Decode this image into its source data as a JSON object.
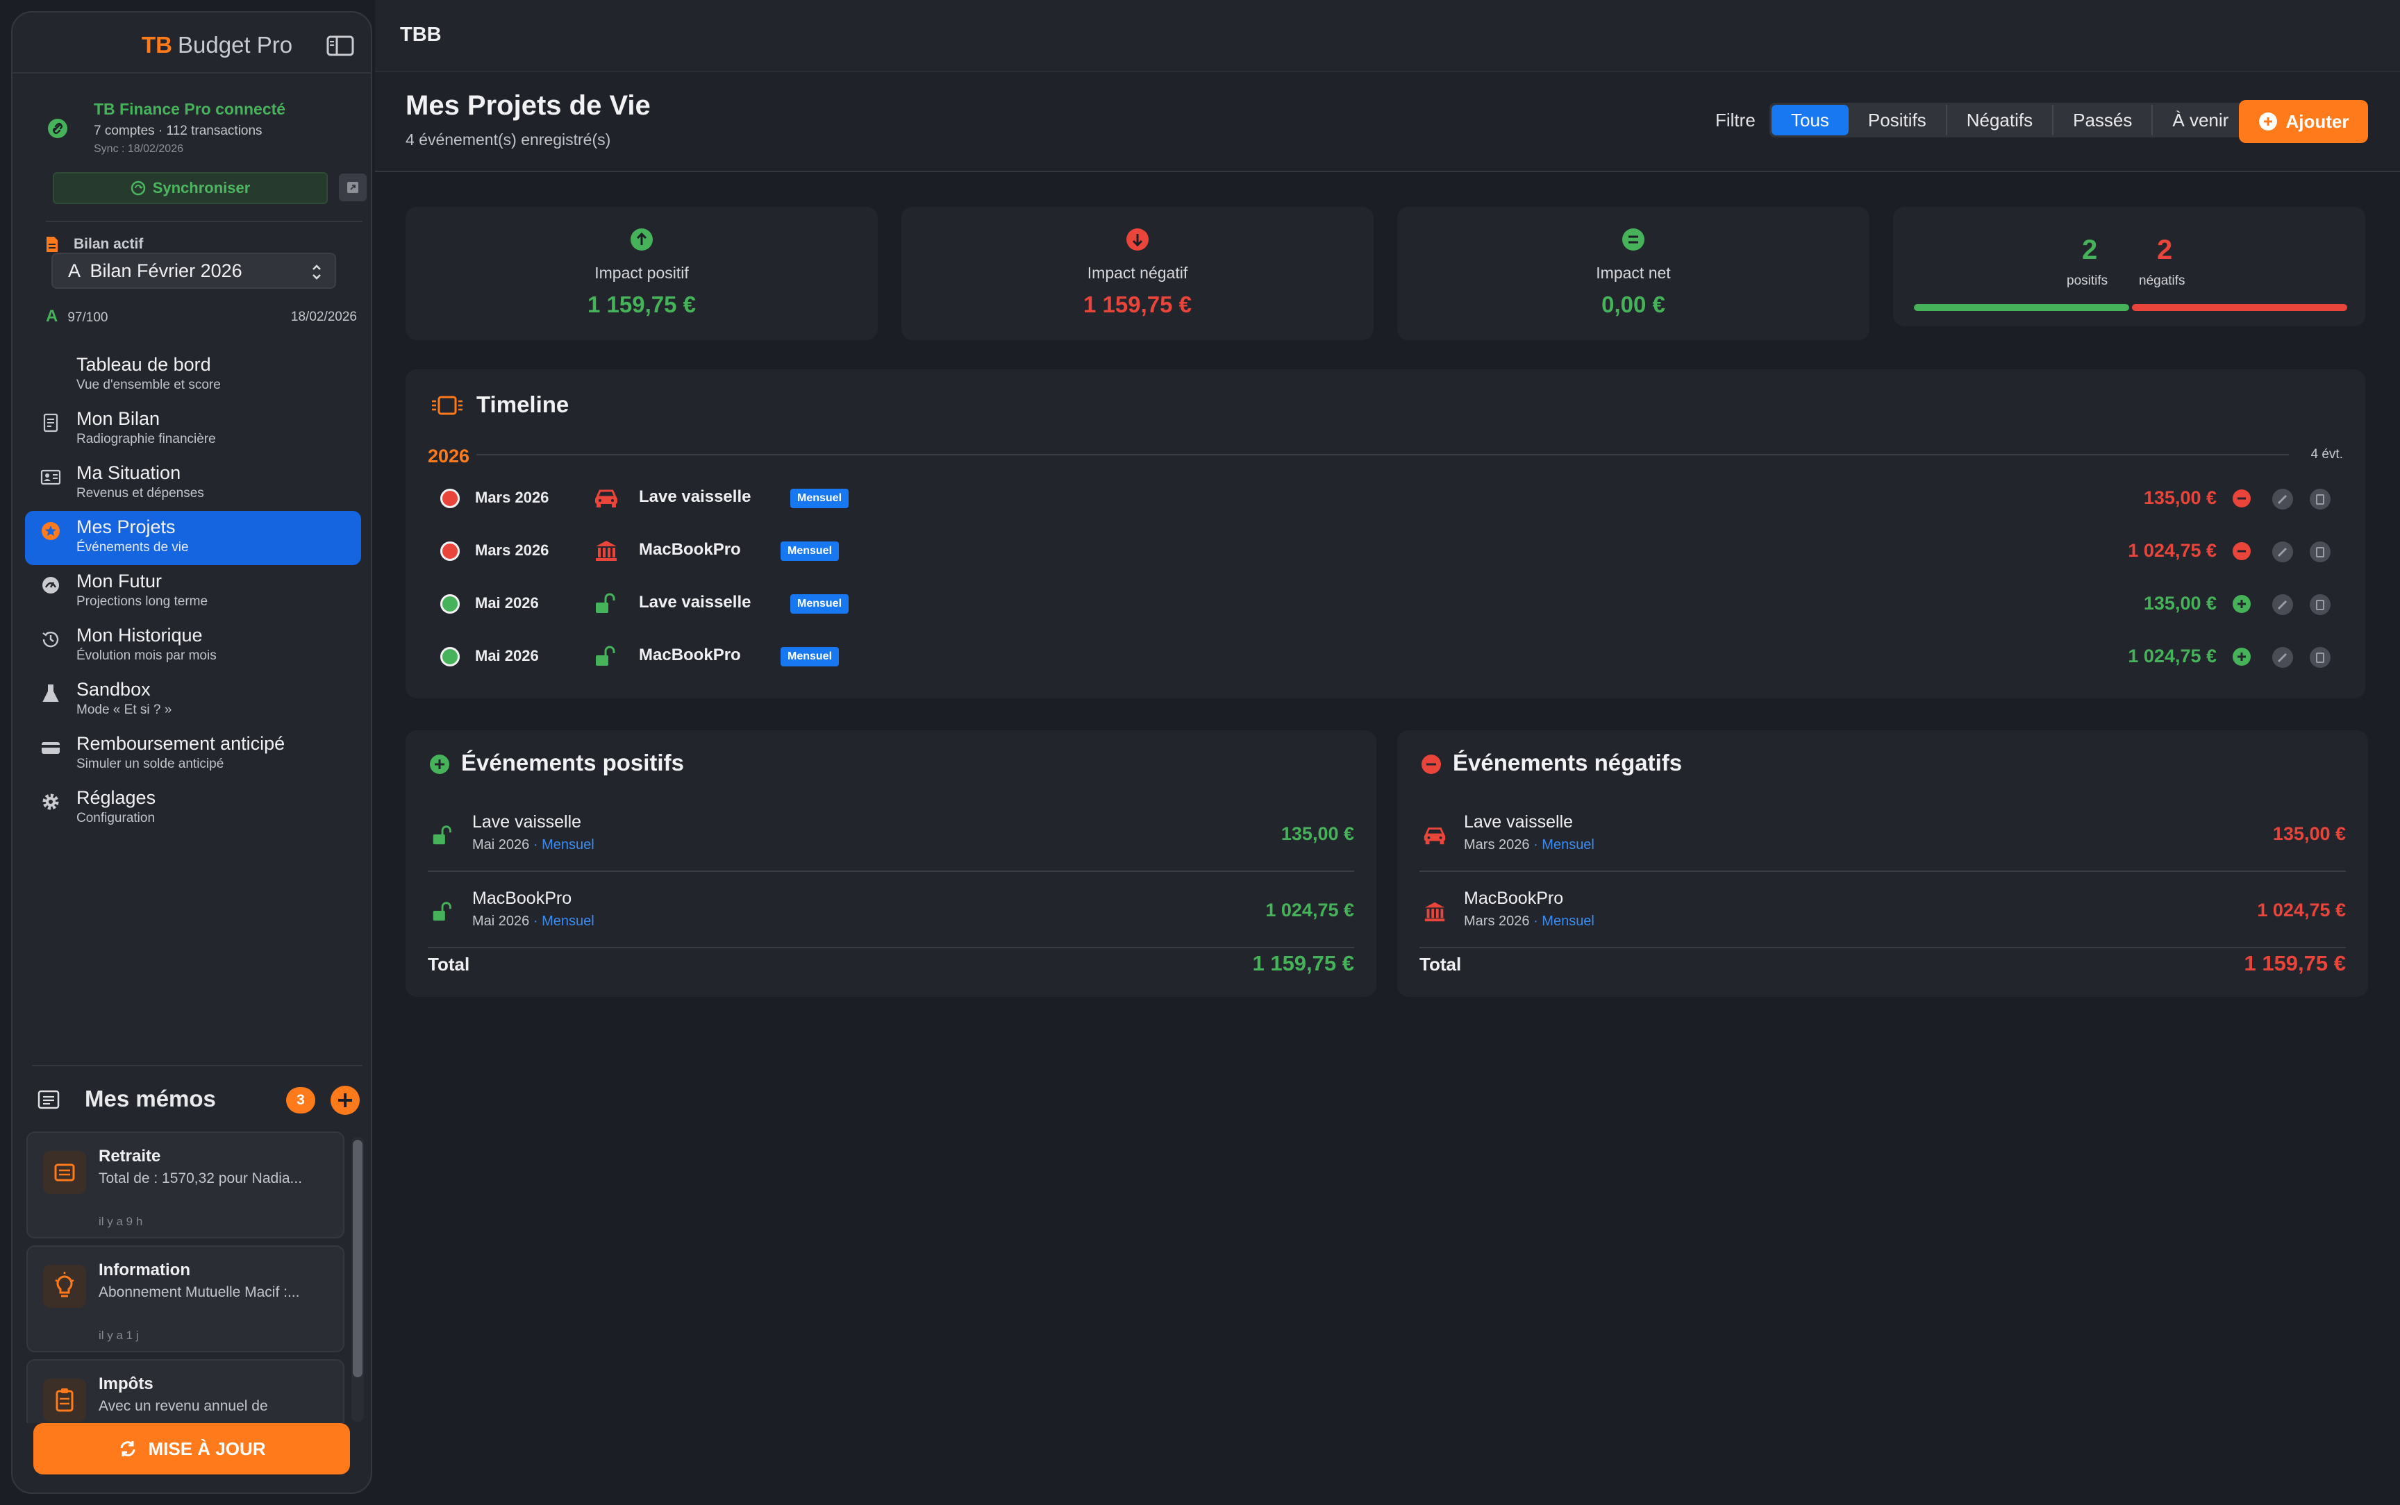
{
  "app": {
    "brand_prefix": "TB",
    "brand_name": "Budget Pro",
    "topbar_title": "TBB"
  },
  "connection": {
    "title": "TB Finance Pro connecté",
    "summary": "7 comptes · 112 transactions",
    "sync_date": "Sync : 18/02/2026",
    "sync_button": "Synchroniser"
  },
  "bilan": {
    "label": "Bilan actif",
    "selected": "A  Bilan Février 2026",
    "grade": "A",
    "score": "97/100",
    "date": "18/02/2026"
  },
  "nav": [
    {
      "id": "tableau",
      "label": "Tableau de bord",
      "sub": "Vue d'ensemble et score",
      "icon": "grid-icon"
    },
    {
      "id": "bilan",
      "label": "Mon Bilan",
      "sub": "Radiographie financière",
      "icon": "document-icon"
    },
    {
      "id": "situation",
      "label": "Ma Situation",
      "sub": "Revenus et dépenses",
      "icon": "id-card-icon"
    },
    {
      "id": "projets",
      "label": "Mes Projets",
      "sub": "Événements de vie",
      "icon": "star-icon"
    },
    {
      "id": "futur",
      "label": "Mon Futur",
      "sub": "Projections long terme",
      "icon": "gauge-icon"
    },
    {
      "id": "historique",
      "label": "Mon Historique",
      "sub": "Évolution mois par mois",
      "icon": "history-icon"
    },
    {
      "id": "sandbox",
      "label": "Sandbox",
      "sub": "Mode « Et si ? »",
      "icon": "flask-icon"
    },
    {
      "id": "remboursement",
      "label": "Remboursement anticipé",
      "sub": "Simuler un solde anticipé",
      "icon": "credit-card-icon"
    },
    {
      "id": "reglages",
      "label": "Réglages",
      "sub": "Configuration",
      "icon": "gear-icon"
    }
  ],
  "memos": {
    "title": "Mes mémos",
    "count": "3",
    "items": [
      {
        "title": "Retraite",
        "body": "Total de : 1570,32 pour Nadia...",
        "time": "il y a 9 h"
      },
      {
        "title": "Information",
        "body": "Abonnement Mutuelle Macif :...",
        "time": "il y a 1 j"
      },
      {
        "title": "Impôts",
        "body": "Avec un revenu annuel de",
        "time": ""
      }
    ]
  },
  "update_button": "MISE À JOUR",
  "page": {
    "title": "Mes Projets de Vie",
    "subtitle": "4 événement(s) enregistré(s)"
  },
  "filter": {
    "label": "Filtre",
    "options": [
      "Tous",
      "Positifs",
      "Négatifs",
      "Passés",
      "À venir"
    ],
    "selected": "Tous"
  },
  "add_button": "Ajouter",
  "stats": {
    "positive": {
      "label": "Impact positif",
      "value": "1 159,75 €"
    },
    "negative": {
      "label": "Impact négatif",
      "value": "1 159,75 €"
    },
    "net": {
      "label": "Impact net",
      "value": "0,00 €"
    },
    "counts": {
      "positive": "2",
      "positive_label": "positifs",
      "negative": "2",
      "negative_label": "négatifs",
      "positive_share": 0.5
    }
  },
  "timeline": {
    "title": "Timeline",
    "year": "2026",
    "count": "4 évt.",
    "rows": [
      {
        "date": "Mars 2026",
        "name": "Lave vaisselle",
        "badge": "Mensuel",
        "amount": "135,00 €",
        "kind": "negative",
        "icon": "car-icon"
      },
      {
        "date": "Mars 2026",
        "name": "MacBookPro",
        "badge": "Mensuel",
        "amount": "1 024,75 €",
        "kind": "negative",
        "icon": "bank-icon"
      },
      {
        "date": "Mai 2026",
        "name": "Lave vaisselle",
        "badge": "Mensuel",
        "amount": "135,00 €",
        "kind": "positive",
        "icon": "unlock-icon"
      },
      {
        "date": "Mai 2026",
        "name": "MacBookPro",
        "badge": "Mensuel",
        "amount": "1 024,75 €",
        "kind": "positive",
        "icon": "unlock-icon"
      }
    ]
  },
  "positive_events": {
    "title": "Événements positifs",
    "items": [
      {
        "name": "Lave vaisselle",
        "date": "Mai 2026",
        "freq": "Mensuel",
        "amount": "135,00 €"
      },
      {
        "name": "MacBookPro",
        "date": "Mai 2026",
        "freq": "Mensuel",
        "amount": "1 024,75 €"
      }
    ],
    "total_label": "Total",
    "total": "1 159,75 €"
  },
  "negative_events": {
    "title": "Événements négatifs",
    "items": [
      {
        "name": "Lave vaisselle",
        "date": "Mars 2026",
        "freq": "Mensuel",
        "amount": "135,00 €"
      },
      {
        "name": "MacBookPro",
        "date": "Mars 2026",
        "freq": "Mensuel",
        "amount": "1 024,75 €"
      }
    ],
    "total_label": "Total",
    "total": "1 159,75 €"
  },
  "colors": {
    "accent": "#ff7a1a",
    "primary": "#1778f2",
    "positive": "#46b35a",
    "negative": "#e9453b"
  }
}
